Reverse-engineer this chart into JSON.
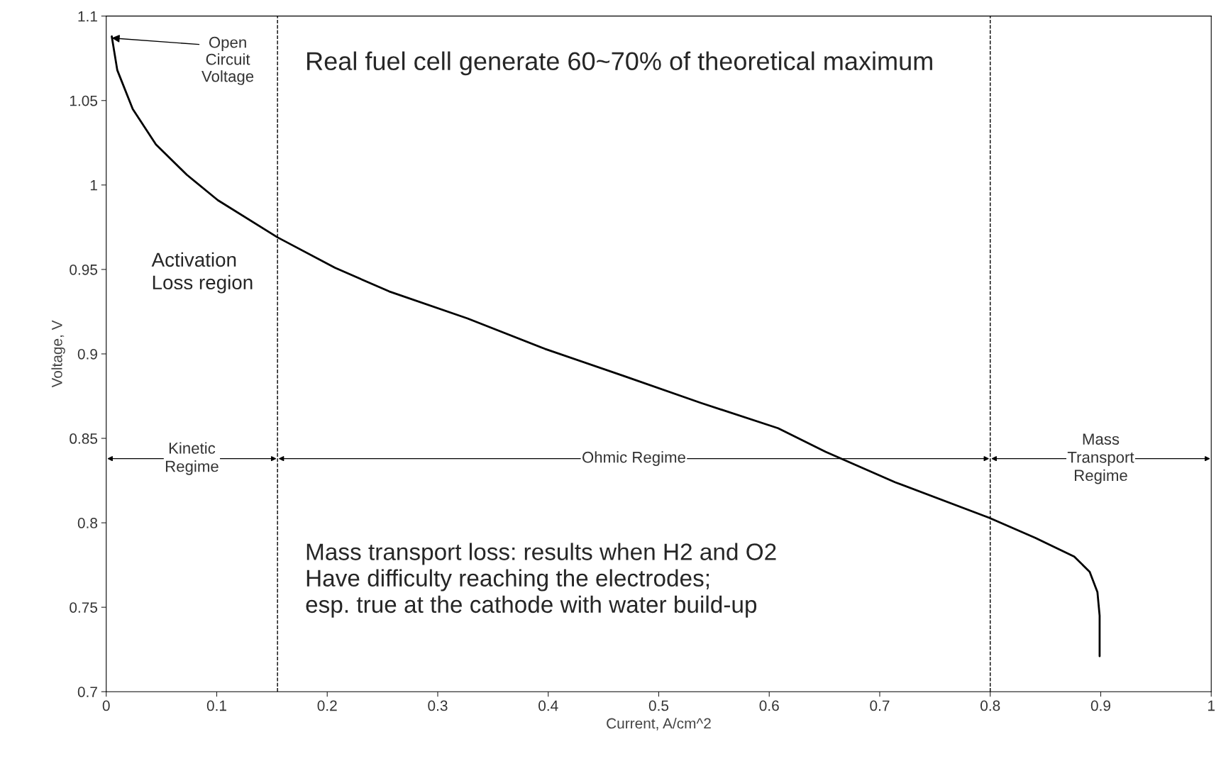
{
  "chart_data": {
    "type": "line",
    "xlabel": "Current, A/cm^2",
    "ylabel": "Voltage, V",
    "xlim": [
      0,
      1
    ],
    "ylim": [
      0.7,
      1.1
    ],
    "xticks": [
      0,
      0.1,
      0.2,
      0.3,
      0.4,
      0.5,
      0.6,
      0.7,
      0.8,
      0.9,
      1
    ],
    "yticks": [
      0.7,
      0.75,
      0.8,
      0.85,
      0.9,
      0.95,
      1,
      1.05,
      1.1
    ],
    "grid": false,
    "legend": false,
    "marker": "none",
    "line_style": "solid",
    "series": [
      {
        "color": "#000000",
        "x": [
          0.005,
          0.01,
          0.024,
          0.045,
          0.073,
          0.101,
          0.155,
          0.207,
          0.256,
          0.327,
          0.397,
          0.468,
          0.538,
          0.608,
          0.651,
          0.714,
          0.799,
          0.841,
          0.876,
          0.89,
          0.897,
          0.899,
          0.899
        ],
        "values": [
          1.088,
          1.068,
          1.045,
          1.024,
          1.006,
          0.991,
          0.969,
          0.951,
          0.937,
          0.921,
          0.903,
          0.887,
          0.871,
          0.856,
          0.842,
          0.824,
          0.803,
          0.791,
          0.78,
          0.771,
          0.759,
          0.745,
          0.721
        ]
      }
    ],
    "ref_lines": [
      {
        "axis": "x",
        "value": 0.155,
        "color": "#000000",
        "line_style": "dashed"
      },
      {
        "axis": "x",
        "value": 0.8,
        "color": "#000000",
        "line_style": "dashed"
      }
    ],
    "annotations": [
      {
        "text": "Open\nCircuit\nVoltage",
        "x": 0.005,
        "y": 1.087
      },
      "Kinetic\nRegime",
      "Ohmic Regime",
      "Mass\nTransport\nRegime",
      "Real fuel cell generate 60~70% of theoretical maximum",
      "Activation\nLoss region",
      "Mass transport loss: results when H2 and O2\nHave difficulty reaching the electrodes;\nesp. true at the cathode with water build-up"
    ]
  }
}
